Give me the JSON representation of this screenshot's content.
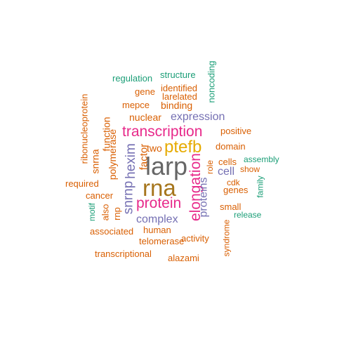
{
  "colors": {
    "orange": "#D95F02",
    "teal": "#1B9E77",
    "purple": "#7570B3",
    "magenta": "#E7298A",
    "gold": "#E6AB02",
    "brown": "#A6761D",
    "gray": "#666666"
  },
  "words": [
    {
      "text": "larp",
      "color": "gray"
    },
    {
      "text": "rna",
      "color": "brown"
    },
    {
      "text": "ptefb",
      "color": "gold"
    },
    {
      "text": "transcription",
      "color": "magenta"
    },
    {
      "text": "protein",
      "color": "magenta"
    },
    {
      "text": "elongation",
      "color": "magenta"
    },
    {
      "text": "hexim",
      "color": "purple"
    },
    {
      "text": "snrnp",
      "color": "purple"
    },
    {
      "text": "proteins",
      "color": "purple"
    },
    {
      "text": "expression",
      "color": "purple"
    },
    {
      "text": "complex",
      "color": "purple"
    },
    {
      "text": "cell",
      "color": "purple"
    },
    {
      "text": "factor",
      "color": "orange"
    },
    {
      "text": "two",
      "color": "orange"
    },
    {
      "text": "polymerase",
      "color": "orange"
    },
    {
      "text": "function",
      "color": "orange"
    },
    {
      "text": "snrna",
      "color": "orange"
    },
    {
      "text": "ribonucleoprotein",
      "color": "orange"
    },
    {
      "text": "nuclear",
      "color": "orange"
    },
    {
      "text": "binding",
      "color": "orange"
    },
    {
      "text": "mepce",
      "color": "orange"
    },
    {
      "text": "larelated",
      "color": "orange"
    },
    {
      "text": "identified",
      "color": "orange"
    },
    {
      "text": "gene",
      "color": "orange"
    },
    {
      "text": "regulation",
      "color": "teal"
    },
    {
      "text": "structure",
      "color": "teal"
    },
    {
      "text": "noncoding",
      "color": "teal"
    },
    {
      "text": "positive",
      "color": "orange"
    },
    {
      "text": "domain",
      "color": "orange"
    },
    {
      "text": "cells",
      "color": "orange"
    },
    {
      "text": "assembly",
      "color": "teal"
    },
    {
      "text": "show",
      "color": "orange"
    },
    {
      "text": "cdk",
      "color": "orange"
    },
    {
      "text": "genes",
      "color": "orange"
    },
    {
      "text": "family",
      "color": "teal"
    },
    {
      "text": "role",
      "color": "orange"
    },
    {
      "text": "small",
      "color": "orange"
    },
    {
      "text": "release",
      "color": "teal"
    },
    {
      "text": "syndrome",
      "color": "orange"
    },
    {
      "text": "activity",
      "color": "orange"
    },
    {
      "text": "alazami",
      "color": "orange"
    },
    {
      "text": "human",
      "color": "orange"
    },
    {
      "text": "telomerase",
      "color": "orange"
    },
    {
      "text": "associated",
      "color": "orange"
    },
    {
      "text": "transcriptional",
      "color": "orange"
    },
    {
      "text": "cancer",
      "color": "orange"
    },
    {
      "text": "required",
      "color": "orange"
    },
    {
      "text": "also",
      "color": "orange"
    },
    {
      "text": "rnp",
      "color": "orange"
    },
    {
      "text": "motif",
      "color": "teal"
    }
  ]
}
